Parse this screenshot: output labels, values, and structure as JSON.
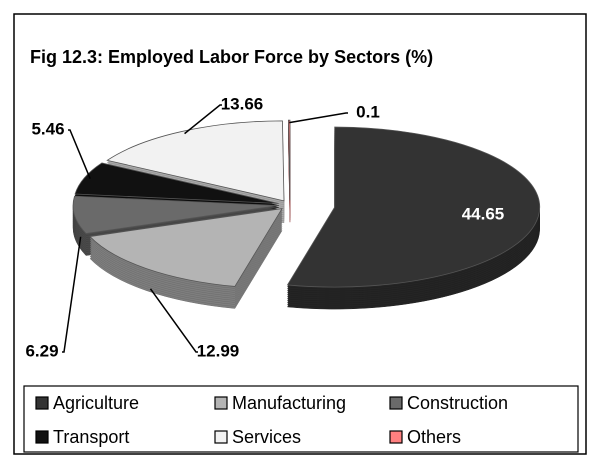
{
  "chart_data": {
    "type": "pie3d",
    "title": "Fig 12.3:  Employed Labor Force by Sectors  (%)",
    "categories": [
      "Agriculture",
      "Manufacturing",
      "Construction",
      "Transport",
      "Services",
      "Others"
    ],
    "values": [
      44.65,
      12.99,
      6.29,
      5.46,
      13.66,
      0.1
    ],
    "colors": [
      "#333333",
      "#b4b4b4",
      "#6a6a6a",
      "#111111",
      "#f2f2f2",
      "#ff8080"
    ],
    "legend": "bottom"
  }
}
